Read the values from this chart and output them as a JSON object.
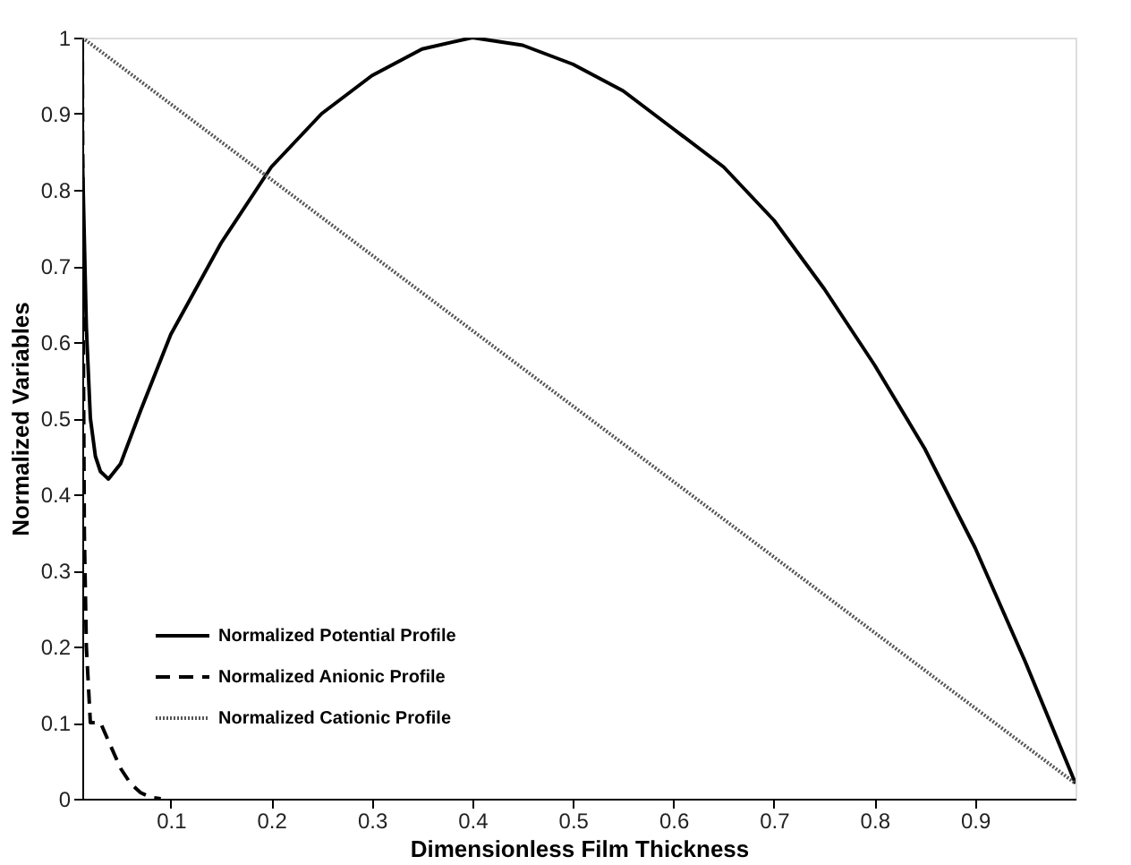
{
  "chart_data": {
    "type": "line",
    "xlabel": "Dimensionless Film Thickness",
    "ylabel": "Normalized Variables",
    "xlim": [
      0.012,
      1.0
    ],
    "ylim": [
      0,
      1
    ],
    "xticks": [
      0.1,
      0.2,
      0.3,
      0.4,
      0.5,
      0.6,
      0.7,
      0.8,
      0.9
    ],
    "yticks": [
      0,
      0.1,
      0.2,
      0.3,
      0.4,
      0.5,
      0.6,
      0.7,
      0.8,
      0.9,
      1
    ],
    "legend": "bottom left",
    "grid": false,
    "series": [
      {
        "name": "Normalized Potential Profile",
        "color": "#000000",
        "line_style": "solid",
        "x": [
          0.012,
          0.016,
          0.02,
          0.025,
          0.03,
          0.038,
          0.05,
          0.07,
          0.1,
          0.15,
          0.2,
          0.25,
          0.3,
          0.35,
          0.4,
          0.45,
          0.5,
          0.55,
          0.6,
          0.65,
          0.7,
          0.75,
          0.8,
          0.85,
          0.9,
          0.95,
          1.0
        ],
        "values": [
          0.85,
          0.62,
          0.5,
          0.45,
          0.43,
          0.42,
          0.44,
          0.51,
          0.61,
          0.73,
          0.83,
          0.9,
          0.95,
          0.985,
          1.0,
          0.99,
          0.965,
          0.93,
          0.88,
          0.83,
          0.76,
          0.67,
          0.57,
          0.46,
          0.33,
          0.18,
          0.02
        ]
      },
      {
        "name": "Normalized Anionic Profile",
        "color": "#000000",
        "line_style": "dashed",
        "x": [
          0.012,
          0.013,
          0.014,
          0.016,
          0.018,
          0.02,
          0.025,
          0.03,
          0.04,
          0.05,
          0.06,
          0.07,
          0.08,
          0.09
        ],
        "values": [
          1.0,
          0.6,
          0.35,
          0.2,
          0.15,
          0.1,
          0.1,
          0.1,
          0.07,
          0.04,
          0.02,
          0.008,
          0.002,
          0
        ]
      },
      {
        "name": "Normalized Cationic Profile",
        "color": "#555555",
        "line_style": "dotted",
        "x": [
          0.012,
          1.0
        ],
        "values": [
          1.0,
          0.02
        ]
      }
    ]
  }
}
